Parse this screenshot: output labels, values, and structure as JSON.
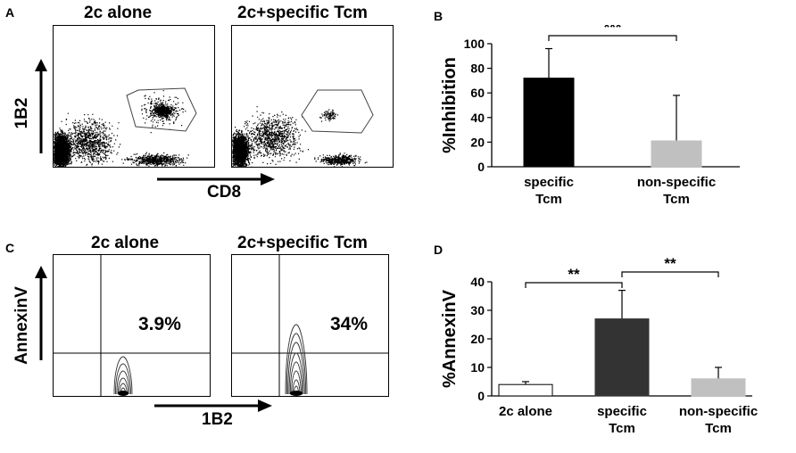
{
  "panels": {
    "A": {
      "letter": "A",
      "titles": [
        "2c alone",
        "2c+specific Tcm"
      ],
      "y_axis": "1B2",
      "x_axis": "CD8"
    },
    "B": {
      "letter": "B"
    },
    "C": {
      "letter": "C",
      "titles": [
        "2c alone",
        "2c+specific Tcm"
      ],
      "percents": [
        "3.9%",
        "34%"
      ],
      "y_axis": "AnnexinV",
      "x_axis": "1B2"
    },
    "D": {
      "letter": "D"
    }
  },
  "chart_data": [
    {
      "panel": "B",
      "type": "bar",
      "categories": [
        "specific\nTcm",
        "non-specific\nTcm"
      ],
      "values": [
        72,
        21
      ],
      "errors": [
        24,
        37
      ],
      "colors": [
        "#000000",
        "#c0c0c0"
      ],
      "ylabel": "%Inhibition",
      "ylim": [
        0,
        100
      ],
      "yticks": [
        0,
        20,
        40,
        60,
        80,
        100
      ],
      "significance": [
        {
          "from": 0,
          "to": 1,
          "label": "***"
        }
      ]
    },
    {
      "panel": "D",
      "type": "bar",
      "categories": [
        "2c alone",
        "specific\nTcm",
        "non-specific\nTcm"
      ],
      "values": [
        4,
        27,
        6
      ],
      "errors": [
        1,
        10,
        4
      ],
      "colors": [
        "#ffffff",
        "#333333",
        "#c0c0c0"
      ],
      "ylabel": "%AnnexinV",
      "ylim": [
        0,
        40
      ],
      "yticks": [
        0,
        10,
        20,
        30,
        40
      ],
      "significance": [
        {
          "from": 0,
          "to": 1,
          "label": "**"
        },
        {
          "from": 1,
          "to": 2,
          "label": "**"
        }
      ]
    }
  ]
}
